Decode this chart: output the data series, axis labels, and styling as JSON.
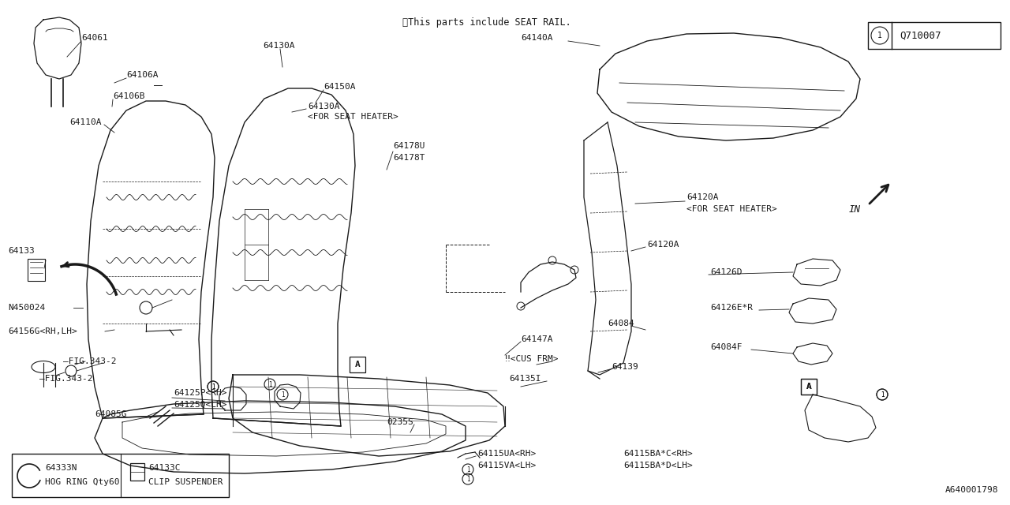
{
  "bg_color": "#ffffff",
  "line_color": "#1a1a1a",
  "note": "※This parts include SEAT RAIL.",
  "diagram_id": "Q710007",
  "part_id": "A640001798",
  "legend_items": [
    {
      "part_no": "64333N",
      "desc": "HOG RING Qty60"
    },
    {
      "part_no": "64133C",
      "desc": "CLIP SUSPENDER"
    }
  ],
  "fontsize": 8.0,
  "fontsize_note": 8.5
}
